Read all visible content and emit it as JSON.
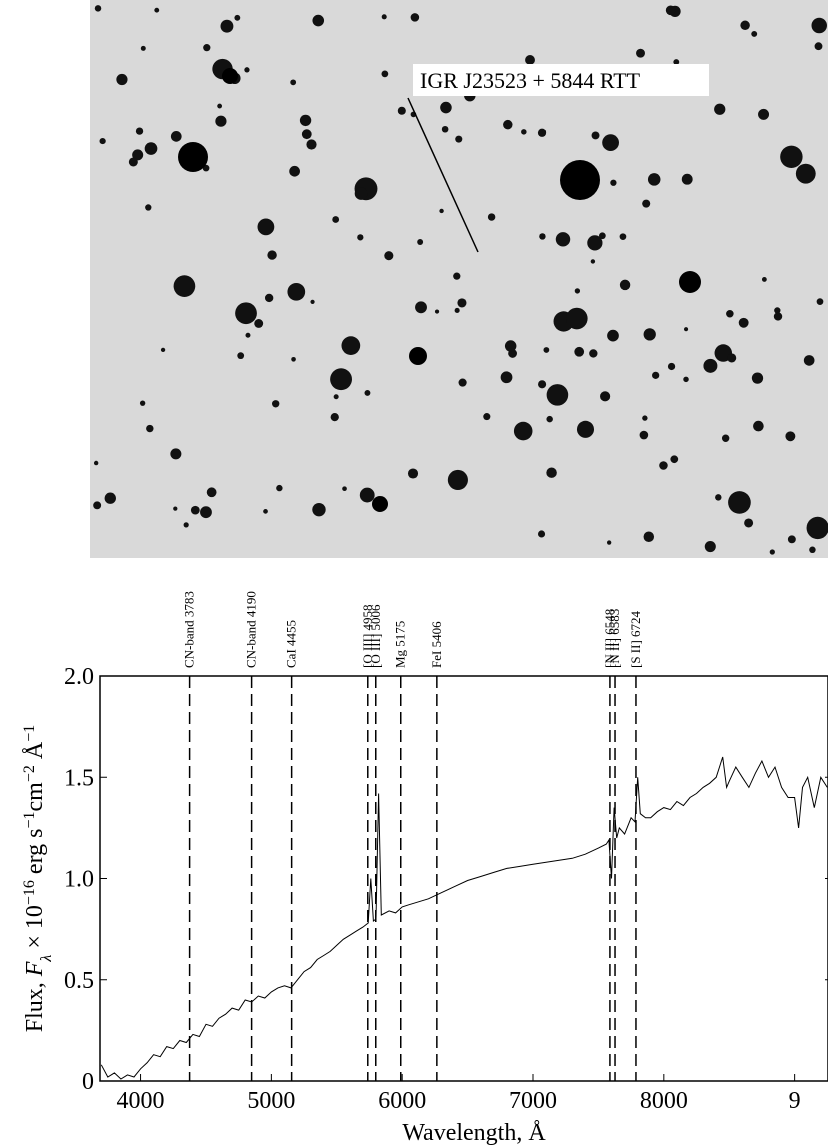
{
  "chart_data": {
    "type": "line",
    "annotation": "IGR J23523 + 5844 RTT",
    "xlabel": "Wavelength, Å",
    "ylabel": [
      {
        "text": "Flux, ",
        "pos": "base"
      },
      {
        "text": "F",
        "pos": "italic"
      },
      {
        "text": "λ",
        "pos": "sub"
      },
      {
        "text": " × 10",
        "pos": "base"
      },
      {
        "text": "−16",
        "pos": "sup"
      },
      {
        "text": " erg s",
        "pos": "base"
      },
      {
        "text": "−1",
        "pos": "sup"
      },
      {
        "text": "cm",
        "pos": "base"
      },
      {
        "text": "−2",
        "pos": "sup"
      },
      {
        "text": " Å",
        "pos": "base"
      },
      {
        "text": "−1",
        "pos": "sup"
      }
    ],
    "xlim": [
      3690,
      9255
    ],
    "ylim": [
      0,
      2
    ],
    "xticks": [
      4000,
      5000,
      6000,
      7000,
      8000,
      {
        "value": 9000,
        "label": "9"
      }
    ],
    "yticks": [
      0,
      0.5,
      {
        "value": 1,
        "label": "1.0"
      },
      1.5,
      {
        "value": 2,
        "label": "2.0"
      }
    ],
    "lines": [
      {
        "label": "CN-band 3783",
        "x": 4375
      },
      {
        "label": "CN-band 4190",
        "x": 4849
      },
      {
        "label": "CaI 4455",
        "x": 5155
      },
      {
        "label": "[O III] 4958",
        "x": 5737
      },
      {
        "label": "[O III] 5006",
        "x": 5798
      },
      {
        "label": "Mg  5175",
        "x": 5989
      },
      {
        "label": "FeI 5406",
        "x": 6265
      },
      {
        "label": "[N II] 6548",
        "x": 7588
      },
      {
        "label": "[N II] 6583",
        "x": 7627
      },
      {
        "label": "[S II] 6724",
        "x": 7787
      }
    ],
    "series": [
      {
        "color": "#000000",
        "x": [
          3700,
          3750,
          3800,
          3850,
          3900,
          3950,
          4000,
          4050,
          4100,
          4150,
          4200,
          4250,
          4300,
          4350,
          4400,
          4450,
          4500,
          4550,
          4600,
          4650,
          4700,
          4750,
          4800,
          4850,
          4900,
          4950,
          5000,
          5050,
          5100,
          5150,
          5200,
          5250,
          5300,
          5350,
          5400,
          5450,
          5500,
          5550,
          5600,
          5650,
          5700,
          5740,
          5760,
          5780,
          5800,
          5820,
          5840,
          5900,
          5950,
          6000,
          6050,
          6100,
          6200,
          6300,
          6400,
          6500,
          6600,
          6700,
          6800,
          6900,
          7000,
          7100,
          7200,
          7300,
          7400,
          7500,
          7560,
          7580,
          7600,
          7620,
          7640,
          7660,
          7700,
          7750,
          7780,
          7800,
          7820,
          7860,
          7900,
          7950,
          8000,
          8050,
          8100,
          8150,
          8200,
          8250,
          8300,
          8350,
          8400,
          8430,
          8450,
          8480,
          8500,
          8550,
          8600,
          8650,
          8700,
          8750,
          8800,
          8850,
          8900,
          8950,
          9000,
          9030,
          9060,
          9100,
          9150,
          9200,
          9250
        ],
        "values": [
          0.08,
          0.02,
          0.04,
          0.01,
          0.03,
          0.02,
          0.06,
          0.09,
          0.13,
          0.12,
          0.17,
          0.16,
          0.2,
          0.19,
          0.23,
          0.22,
          0.28,
          0.27,
          0.31,
          0.33,
          0.36,
          0.35,
          0.4,
          0.39,
          0.42,
          0.41,
          0.44,
          0.46,
          0.47,
          0.46,
          0.5,
          0.54,
          0.56,
          0.6,
          0.62,
          0.64,
          0.67,
          0.7,
          0.72,
          0.74,
          0.76,
          0.78,
          1.0,
          0.79,
          0.8,
          1.42,
          0.82,
          0.84,
          0.83,
          0.86,
          0.87,
          0.88,
          0.9,
          0.93,
          0.96,
          0.99,
          1.01,
          1.03,
          1.05,
          1.06,
          1.07,
          1.08,
          1.09,
          1.1,
          1.12,
          1.15,
          1.17,
          1.19,
          1.0,
          1.35,
          1.2,
          1.25,
          1.22,
          1.3,
          1.28,
          1.5,
          1.32,
          1.3,
          1.3,
          1.33,
          1.35,
          1.34,
          1.38,
          1.36,
          1.4,
          1.42,
          1.45,
          1.47,
          1.5,
          1.56,
          1.6,
          1.45,
          1.48,
          1.55,
          1.5,
          1.45,
          1.52,
          1.58,
          1.5,
          1.55,
          1.45,
          1.4,
          1.4,
          1.25,
          1.45,
          1.5,
          1.35,
          1.5,
          1.45
        ]
      }
    ]
  }
}
